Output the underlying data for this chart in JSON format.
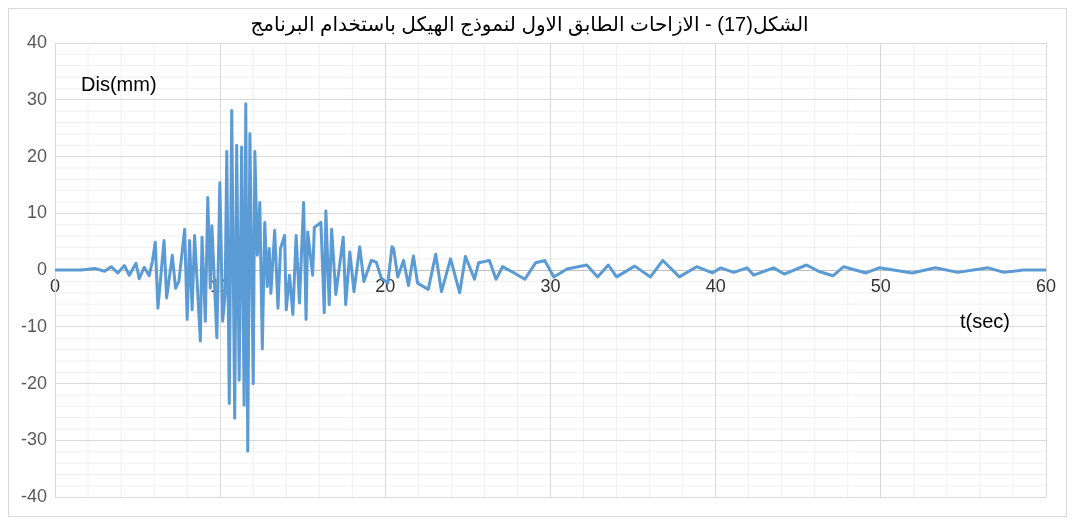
{
  "chart_data": {
    "type": "line",
    "title": "الشكل(17) - الازاحات الطابق الاول لنموذج الهيكل باستخدام البرنامج",
    "xlabel": "t(sec)",
    "ylabel": "Dis(mm)",
    "x": [
      0,
      1.6,
      2.4,
      3,
      3.4,
      3.8,
      4.2,
      4.5,
      4.9,
      5.1,
      5.4,
      5.7,
      5.9,
      6.07,
      6.23,
      6.6,
      6.76,
      7.1,
      7.3,
      7.5,
      7.85,
      8.0,
      8.15,
      8.3,
      8.45,
      8.8,
      8.9,
      9.1,
      9.25,
      9.4,
      9.5,
      9.8,
      9.98,
      10.15,
      10.3,
      10.4,
      10.55,
      10.7,
      10.88,
      11,
      11.15,
      11.3,
      11.45,
      11.55,
      11.67,
      11.8,
      12.0,
      12.1,
      12.25,
      12.4,
      12.55,
      12.7,
      12.85,
      12.97,
      13.07,
      13.3,
      13.5,
      13.65,
      13.9,
      14.0,
      14.2,
      14.4,
      14.6,
      14.8,
      15.05,
      15.2,
      15.3,
      15.6,
      15.7,
      16.1,
      16.3,
      16.4,
      16.6,
      16.75,
      17.0,
      17.45,
      17.6,
      17.85,
      18.1,
      18.45,
      18.7,
      19.15,
      19.45,
      19.75,
      20.15,
      20.4,
      20.5,
      20.75,
      21.1,
      21.4,
      21.7,
      21.95,
      22.6,
      23.05,
      23.4,
      23.95,
      24.5,
      24.85,
      25.4,
      25.65,
      26.3,
      26.7,
      27.1,
      27.8,
      28.45,
      29.1,
      29.65,
      30.2,
      31,
      32.2,
      32.85,
      33.5,
      34.0,
      35.1,
      36.05,
      36.8,
      37.8,
      38.85,
      39.8,
      40.3,
      41.1,
      41.9,
      42.3,
      43.5,
      44.15,
      45.5,
      46.3,
      47.1,
      47.75,
      49.1,
      49.9,
      51.9,
      53.3,
      54.65,
      56.5,
      57.45,
      58.6,
      60
    ],
    "series": [
      {
        "color": "#5b9bd5",
        "values": [
          0,
          0,
          0.3,
          -0.2,
          0.6,
          -0.5,
          0.8,
          -0.9,
          1.2,
          -1.5,
          0.5,
          -1,
          1.6,
          4.9,
          -6.7,
          5.2,
          -4.9,
          2.6,
          -3.2,
          -2,
          7.2,
          -8.7,
          5.2,
          -7,
          6.1,
          -12.5,
          5.8,
          -9,
          12.8,
          -3.2,
          7.8,
          -11.9,
          15.4,
          -9,
          -4.3,
          20.9,
          -23.5,
          28.1,
          -26.1,
          22,
          -19.4,
          21.7,
          -23.8,
          29.3,
          -31.9,
          24,
          -20,
          20.9,
          2.6,
          11.9,
          -13.9,
          8.4,
          -2.9,
          3.8,
          -4.1,
          7,
          -6.7,
          3.8,
          6.1,
          -7,
          -0.9,
          -7.8,
          6.1,
          -5.8,
          11.9,
          -8.7,
          6.7,
          -0.9,
          7.5,
          8.4,
          -7.5,
          10.4,
          -6.1,
          7.2,
          -4.3,
          5.8,
          -6.1,
          3.2,
          -3.8,
          4.1,
          -2,
          1.7,
          1.4,
          -1.4,
          -2.3,
          4.1,
          3.8,
          -1.2,
          1.7,
          -2.7,
          2.5,
          -2.3,
          -3.4,
          2.8,
          -3.8,
          2,
          -4,
          2.4,
          -1.6,
          1.3,
          1.7,
          -1.6,
          0.6,
          -0.5,
          -1.6,
          1.3,
          1.7,
          -1.2,
          0.2,
          0.9,
          -1.2,
          0.9,
          -1.2,
          0.7,
          -1.2,
          1.7,
          -1.2,
          0.6,
          -0.5,
          0.4,
          -0.4,
          0.4,
          -0.9,
          0.4,
          -0.7,
          0.9,
          -0.3,
          -1,
          0.6,
          -0.5,
          0.4,
          -0.5,
          0.4,
          -0.4,
          0.4,
          -0.4,
          0,
          0
        ]
      }
    ],
    "xlim": [
      0,
      60
    ],
    "xticks": [
      0,
      10,
      20,
      30,
      40,
      50,
      60
    ],
    "ylim": [
      -40,
      40
    ],
    "yticks": [
      -40,
      -30,
      -20,
      -10,
      0,
      10,
      20,
      30,
      40
    ],
    "grid": true,
    "legend": false,
    "marker": "none",
    "line_style": "solid"
  }
}
